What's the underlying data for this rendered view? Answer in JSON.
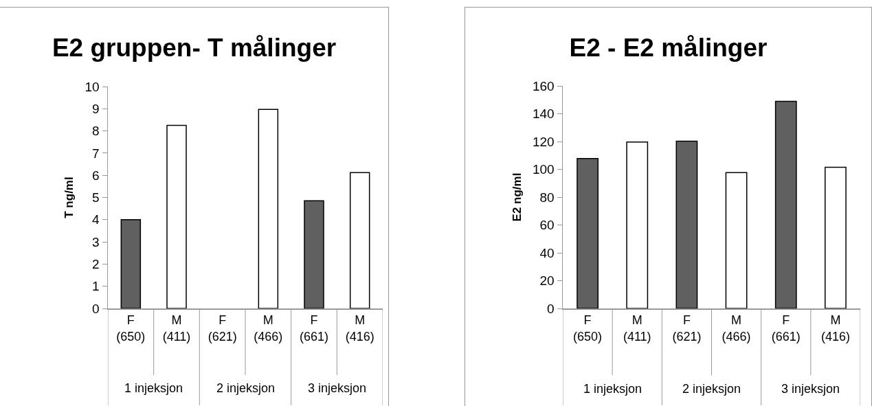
{
  "chart_data": [
    {
      "type": "bar",
      "title": "E2 gruppen- T målinger",
      "ylabel": "T ng/ml",
      "categories": [
        "F (650)",
        "M (411)",
        "F (621)",
        "M (466)",
        "F (661)",
        "M (416)"
      ],
      "values": [
        4.0,
        8.25,
        null,
        8.97,
        4.85,
        6.12
      ],
      "colors": [
        "#606060",
        "#ffffff",
        "#606060",
        "#ffffff",
        "#606060",
        "#ffffff"
      ],
      "ylim": [
        0,
        10
      ],
      "yticks": [
        0,
        1,
        2,
        3,
        4,
        5,
        6,
        7,
        8,
        9,
        10
      ],
      "grid": false,
      "legend": false,
      "annotations": [
        "1 injeksjon",
        "2 injeksjon",
        "3 injeksjon"
      ]
    },
    {
      "type": "bar",
      "title": "E2 - E2 målinger",
      "ylabel": "E2 ng/ml",
      "categories": [
        "F (650)",
        "M (411)",
        "F (621)",
        "M (466)",
        "F (661)",
        "M (416)"
      ],
      "values": [
        107.8,
        119.6,
        120.3,
        97.6,
        148.9,
        101.5
      ],
      "colors": [
        "#606060",
        "#ffffff",
        "#606060",
        "#ffffff",
        "#606060",
        "#ffffff"
      ],
      "ylim": [
        0,
        160
      ],
      "yticks": [
        0,
        20,
        40,
        60,
        80,
        100,
        120,
        140,
        160
      ],
      "grid": false,
      "legend": false,
      "annotations": [
        "1 injeksjon",
        "2 injeksjon",
        "3 injeksjon"
      ]
    }
  ]
}
